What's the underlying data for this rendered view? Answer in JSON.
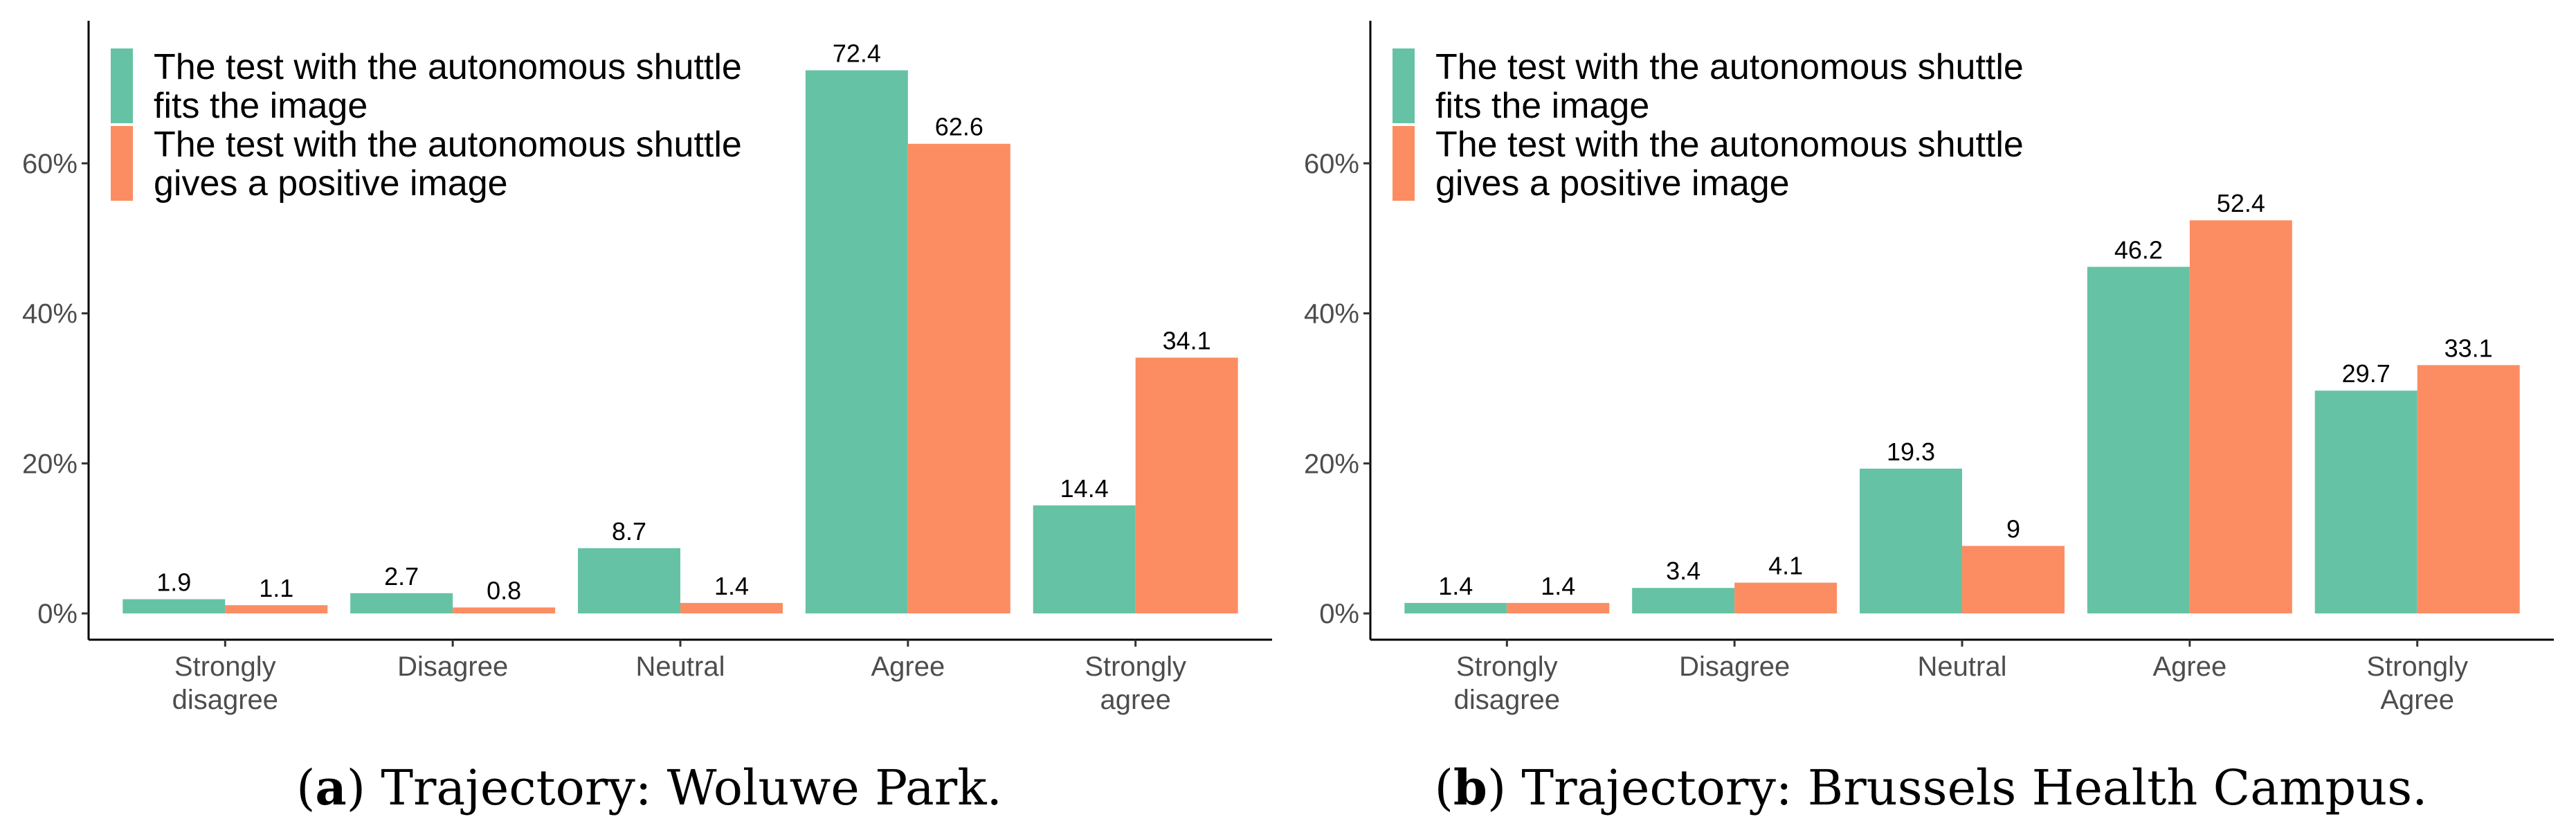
{
  "colors": {
    "series1": "#66c2a5",
    "series2": "#fc8d62"
  },
  "chart_data": [
    {
      "type": "bar",
      "categories": [
        [
          "Strongly",
          "disagree"
        ],
        [
          "Disagree"
        ],
        [
          "Neutral"
        ],
        [
          "Agree"
        ],
        [
          "Strongly",
          "agree"
        ]
      ],
      "series": [
        {
          "name": [
            "The test with the autonomous shuttle",
            "fits the image"
          ],
          "values": [
            1.9,
            2.7,
            8.7,
            72.4,
            14.4
          ],
          "value_labels": [
            "1.9",
            "2.7",
            "8.7",
            "72.4",
            "14.4"
          ]
        },
        {
          "name": [
            "The test with the autonomous shuttle",
            "gives a positive image"
          ],
          "values": [
            1.1,
            0.8,
            1.4,
            62.6,
            34.1
          ],
          "value_labels": [
            "1.1",
            "0.8",
            "1.4",
            "62.6",
            "34.1"
          ]
        }
      ],
      "yticks": [
        0,
        20,
        40,
        60
      ],
      "ytick_labels": [
        "0%",
        "20%",
        "40%",
        "60%"
      ],
      "ylim": [
        -3.5,
        79
      ],
      "legend_position": "top-left",
      "caption": {
        "letter": "a",
        "text": "Trajectory: Woluwe Park."
      }
    },
    {
      "type": "bar",
      "categories": [
        [
          "Strongly",
          "disagree"
        ],
        [
          "Disagree"
        ],
        [
          "Neutral"
        ],
        [
          "Agree"
        ],
        [
          "Strongly",
          "Agree"
        ]
      ],
      "series": [
        {
          "name": [
            "The test with the autonomous shuttle",
            "fits the image"
          ],
          "values": [
            1.4,
            3.4,
            19.3,
            46.2,
            29.7
          ],
          "value_labels": [
            "1.4",
            "3.4",
            "19.3",
            "46.2",
            "29.7"
          ]
        },
        {
          "name": [
            "The test with the autonomous shuttle",
            "gives a positive image"
          ],
          "values": [
            1.4,
            4.1,
            9,
            52.4,
            33.1
          ],
          "value_labels": [
            "1.4",
            "4.1",
            "9",
            "52.4",
            "33.1"
          ]
        }
      ],
      "yticks": [
        0,
        20,
        40,
        60
      ],
      "ytick_labels": [
        "0%",
        "20%",
        "40%",
        "60%"
      ],
      "ylim": [
        -3.5,
        79
      ],
      "legend_position": "top-left",
      "caption": {
        "letter": "b",
        "text": "Trajectory: Brussels Health Campus."
      }
    }
  ]
}
